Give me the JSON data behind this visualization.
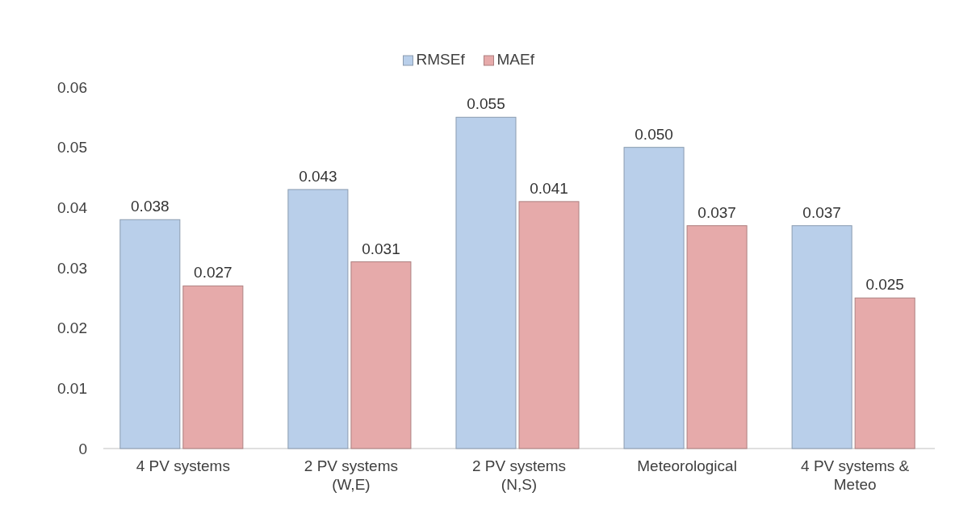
{
  "chart_data": {
    "type": "bar",
    "categories": [
      "4 PV systems",
      "2 PV systems (W,E)",
      "2 PV systems (N,S)",
      "Meteorological",
      "4 PV systems & Meteo"
    ],
    "series": [
      {
        "name": "RMSEf",
        "color": "#b9cfea",
        "values": [
          0.038,
          0.043,
          0.055,
          0.05,
          0.037
        ],
        "value_labels": [
          "0.038",
          "0.043",
          "0.055",
          "0.050",
          "0.037"
        ]
      },
      {
        "name": "MAEf",
        "color": "#e6aaaa",
        "values": [
          0.027,
          0.031,
          0.041,
          0.037,
          0.025
        ],
        "value_labels": [
          "0.027",
          "0.031",
          "0.041",
          "0.037",
          "0.025"
        ]
      }
    ],
    "ylim": [
      0,
      0.06
    ],
    "yticks": [
      0,
      0.01,
      0.02,
      0.03,
      0.04,
      0.05,
      0.06
    ],
    "grid": false,
    "legend": "top"
  }
}
